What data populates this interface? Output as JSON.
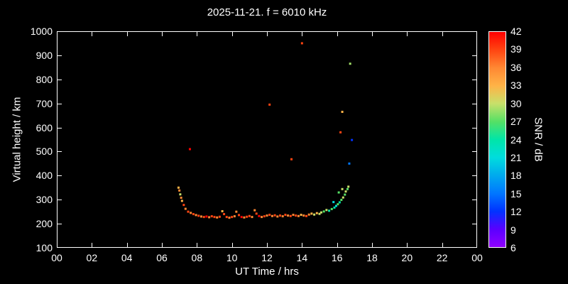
{
  "title": "2025-11-21. f = 6010 kHz",
  "axes": {
    "x": {
      "label": "UT Time / hrs",
      "min": 0,
      "max": 24,
      "tick_values": [
        0,
        2,
        4,
        6,
        8,
        10,
        12,
        14,
        16,
        18,
        20,
        22,
        24
      ],
      "tick_labels": [
        "00",
        "02",
        "04",
        "06",
        "08",
        "10",
        "12",
        "14",
        "16",
        "18",
        "20",
        "22",
        "00"
      ]
    },
    "y": {
      "label": "Virtual height / km",
      "min": 100,
      "max": 1000,
      "tick_values": [
        100,
        200,
        300,
        400,
        500,
        600,
        700,
        800,
        900,
        1000
      ]
    }
  },
  "colorbar": {
    "label": "SNR / dB",
    "min": 6,
    "max": 42,
    "tick_values": [
      6,
      9,
      12,
      15,
      18,
      21,
      24,
      27,
      30,
      33,
      36,
      39,
      42
    ],
    "stops": [
      {
        "v": 6,
        "c": "#9000FF"
      },
      {
        "v": 9,
        "c": "#5A00FF"
      },
      {
        "v": 12,
        "c": "#0033FF"
      },
      {
        "v": 15,
        "c": "#0077FF"
      },
      {
        "v": 18,
        "c": "#00AAEE"
      },
      {
        "v": 21,
        "c": "#00DDDD"
      },
      {
        "v": 24,
        "c": "#00E5A8"
      },
      {
        "v": 27,
        "c": "#55E065"
      },
      {
        "v": 30,
        "c": "#C8E06A"
      },
      {
        "v": 33,
        "c": "#FFB347"
      },
      {
        "v": 36,
        "c": "#FF8833"
      },
      {
        "v": 39,
        "c": "#FF4411"
      },
      {
        "v": 42,
        "c": "#FF0000"
      }
    ]
  },
  "chart_data": {
    "type": "scatter",
    "title": "2025-11-21. f = 6010 kHz",
    "xlabel": "UT Time / hrs",
    "ylabel": "Virtual height / km",
    "color_label": "SNR / dB",
    "xlim": [
      0,
      24
    ],
    "ylim": [
      100,
      1000
    ],
    "clim": [
      6,
      42
    ],
    "grid": false,
    "point_format": "[UT_hrs, virtual_height_km, SNR_dB]",
    "points": [
      [
        6.95,
        350,
        33
      ],
      [
        7.0,
        338,
        36
      ],
      [
        7.05,
        322,
        30
      ],
      [
        7.1,
        308,
        36
      ],
      [
        7.15,
        295,
        33
      ],
      [
        7.25,
        278,
        39
      ],
      [
        7.35,
        262,
        36
      ],
      [
        7.5,
        250,
        39
      ],
      [
        7.6,
        510,
        42
      ],
      [
        7.65,
        245,
        36
      ],
      [
        7.8,
        240,
        39
      ],
      [
        7.95,
        236,
        36
      ],
      [
        8.1,
        233,
        39
      ],
      [
        8.25,
        230,
        36
      ],
      [
        8.4,
        228,
        39
      ],
      [
        8.55,
        230,
        42
      ],
      [
        8.7,
        227,
        36
      ],
      [
        8.85,
        231,
        39
      ],
      [
        9.0,
        228,
        39
      ],
      [
        9.15,
        226,
        36
      ],
      [
        9.3,
        229,
        39
      ],
      [
        9.45,
        252,
        33
      ],
      [
        9.55,
        240,
        39
      ],
      [
        9.7,
        228,
        39
      ],
      [
        9.85,
        225,
        36
      ],
      [
        10.0,
        228,
        39
      ],
      [
        10.15,
        231,
        36
      ],
      [
        10.25,
        250,
        36
      ],
      [
        10.4,
        236,
        39
      ],
      [
        10.55,
        228,
        42
      ],
      [
        10.7,
        226,
        36
      ],
      [
        10.85,
        229,
        39
      ],
      [
        11.0,
        232,
        39
      ],
      [
        11.15,
        228,
        36
      ],
      [
        11.3,
        256,
        36
      ],
      [
        11.4,
        242,
        39
      ],
      [
        11.55,
        232,
        42
      ],
      [
        11.7,
        228,
        36
      ],
      [
        11.85,
        231,
        39
      ],
      [
        12.0,
        234,
        36
      ],
      [
        12.15,
        695,
        39
      ],
      [
        12.15,
        237,
        39
      ],
      [
        12.3,
        232,
        36
      ],
      [
        12.45,
        235,
        39
      ],
      [
        12.6,
        230,
        36
      ],
      [
        12.75,
        234,
        39
      ],
      [
        12.9,
        231,
        36
      ],
      [
        13.05,
        237,
        39
      ],
      [
        13.2,
        234,
        36
      ],
      [
        13.35,
        232,
        39
      ],
      [
        13.4,
        468,
        39
      ],
      [
        13.5,
        237,
        36
      ],
      [
        13.65,
        234,
        39
      ],
      [
        13.8,
        232,
        36
      ],
      [
        13.95,
        237,
        33
      ],
      [
        14.0,
        950,
        39
      ],
      [
        14.1,
        234,
        36
      ],
      [
        14.25,
        232,
        39
      ],
      [
        14.4,
        238,
        36
      ],
      [
        14.55,
        242,
        33
      ],
      [
        14.7,
        238,
        30
      ],
      [
        14.85,
        244,
        33
      ],
      [
        15.0,
        241,
        30
      ],
      [
        15.1,
        247,
        30
      ],
      [
        15.25,
        251,
        27
      ],
      [
        15.4,
        257,
        30
      ],
      [
        15.55,
        254,
        24
      ],
      [
        15.7,
        261,
        27
      ],
      [
        15.8,
        290,
        21
      ],
      [
        15.85,
        267,
        24
      ],
      [
        15.95,
        274,
        21
      ],
      [
        16.05,
        281,
        27
      ],
      [
        16.1,
        330,
        27
      ],
      [
        16.15,
        289,
        24
      ],
      [
        16.2,
        580,
        39
      ],
      [
        16.25,
        299,
        27
      ],
      [
        16.3,
        665,
        33
      ],
      [
        16.3,
        344,
        30
      ],
      [
        16.35,
        309,
        30
      ],
      [
        16.45,
        321,
        27
      ],
      [
        16.5,
        334,
        30
      ],
      [
        16.6,
        344,
        27
      ],
      [
        16.65,
        354,
        30
      ],
      [
        16.75,
        865,
        29
      ],
      [
        16.85,
        548,
        12
      ],
      [
        16.7,
        450,
        15
      ]
    ]
  }
}
